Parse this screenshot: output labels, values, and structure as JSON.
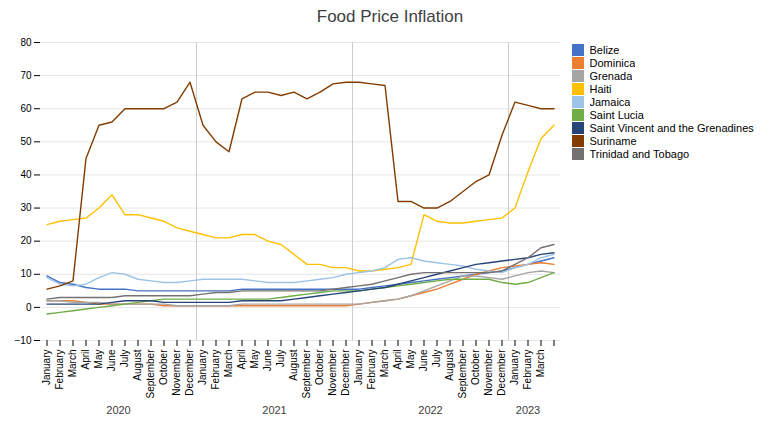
{
  "chart_data": {
    "type": "line",
    "title": "Food Price Inflation",
    "categories": [
      "January",
      "February",
      "March",
      "April",
      "May",
      "June",
      "July",
      "August",
      "September",
      "October",
      "November",
      "December",
      "January",
      "February",
      "March",
      "April",
      "May",
      "June",
      "July",
      "August",
      "September",
      "October",
      "November",
      "December",
      "January",
      "February",
      "March",
      "April",
      "May",
      "June",
      "July",
      "August",
      "September",
      "October",
      "November",
      "December",
      "January",
      "February",
      "March",
      null
    ],
    "series": [
      {
        "name": "Belize",
        "color": "#4472C4",
        "values": [
          9.5,
          7.5,
          7.0,
          6.0,
          5.5,
          5.5,
          5.5,
          5.0,
          5.0,
          5.0,
          5.0,
          5.0,
          5.0,
          5.0,
          5.0,
          5.5,
          5.5,
          5.5,
          5.5,
          5.5,
          5.5,
          5.5,
          5.5,
          5.5,
          5.5,
          6.0,
          6.5,
          7.0,
          7.5,
          8.0,
          8.5,
          9.0,
          9.5,
          10.0,
          10.5,
          11.0,
          12.0,
          13.0,
          14.0,
          15.0
        ]
      },
      {
        "name": "Dominica",
        "color": "#ED7D31",
        "values": [
          2.0,
          2.0,
          2.0,
          1.5,
          1.0,
          1.0,
          1.0,
          1.0,
          1.0,
          0.5,
          0.5,
          0.5,
          0.5,
          0.5,
          0.5,
          0.5,
          0.5,
          0.5,
          0.5,
          0.5,
          0.5,
          0.5,
          0.5,
          0.5,
          1.0,
          1.5,
          2.0,
          2.5,
          3.5,
          4.5,
          5.5,
          7.0,
          8.5,
          10.0,
          11.0,
          12.0,
          12.5,
          13.0,
          13.5,
          13.0
        ]
      },
      {
        "name": "Grenada",
        "color": "#A5A5A5",
        "values": [
          2.0,
          2.0,
          1.5,
          1.5,
          1.5,
          1.0,
          1.0,
          1.0,
          1.0,
          1.0,
          0.5,
          0.5,
          0.5,
          0.5,
          0.5,
          1.0,
          1.0,
          1.0,
          1.0,
          1.0,
          1.0,
          1.0,
          1.0,
          1.0,
          1.0,
          1.5,
          2.0,
          2.5,
          3.5,
          5.0,
          6.5,
          8.0,
          9.5,
          9.5,
          9.0,
          8.5,
          9.5,
          10.5,
          11.0,
          10.5
        ]
      },
      {
        "name": "Haiti",
        "color": "#FFC000",
        "values": [
          25.0,
          26.0,
          26.5,
          27.0,
          30.0,
          34.0,
          28.0,
          28.0,
          27.0,
          26.0,
          24.0,
          23.0,
          22.0,
          21.0,
          21.0,
          22.0,
          22.0,
          20.0,
          19.0,
          16.0,
          13.0,
          13.0,
          12.0,
          12.0,
          11.0,
          11.0,
          11.5,
          12.0,
          13.0,
          28.0,
          26.0,
          25.5,
          25.5,
          26.0,
          26.5,
          27.0,
          30.0,
          41.0,
          51.0,
          55.0
        ]
      },
      {
        "name": "Jamaica",
        "color": "#9DC3E6",
        "values": [
          9.0,
          7.0,
          6.5,
          7.0,
          9.0,
          10.5,
          10.0,
          8.5,
          8.0,
          7.5,
          7.5,
          8.0,
          8.5,
          8.5,
          8.5,
          8.5,
          8.0,
          7.5,
          7.5,
          7.5,
          8.0,
          8.5,
          9.0,
          10.0,
          10.5,
          11.0,
          12.0,
          14.5,
          15.0,
          14.0,
          13.5,
          13.0,
          12.5,
          11.5,
          11.0,
          10.5,
          12.0,
          13.0,
          15.0,
          16.0
        ]
      },
      {
        "name": "Saint Lucia",
        "color": "#70AD47",
        "values": [
          -2.0,
          -1.5,
          -1.0,
          -0.5,
          0.0,
          0.5,
          1.0,
          1.5,
          2.0,
          2.5,
          2.5,
          2.5,
          2.5,
          2.5,
          2.5,
          2.5,
          2.5,
          2.5,
          3.0,
          3.5,
          4.0,
          4.5,
          5.0,
          5.0,
          5.0,
          5.5,
          6.0,
          6.5,
          7.0,
          7.5,
          8.0,
          8.5,
          8.5,
          8.5,
          8.5,
          7.5,
          7.0,
          7.5,
          9.0,
          10.5
        ]
      },
      {
        "name": "Saint Vincent and the Grenadines",
        "color": "#264478",
        "values": [
          1.0,
          1.0,
          1.0,
          1.0,
          1.0,
          1.5,
          2.0,
          2.0,
          2.0,
          1.5,
          1.5,
          1.5,
          1.5,
          1.5,
          1.5,
          2.0,
          2.0,
          2.0,
          2.0,
          2.5,
          3.0,
          3.5,
          4.0,
          4.5,
          5.0,
          5.5,
          6.0,
          7.0,
          8.0,
          9.0,
          10.0,
          11.0,
          12.0,
          13.0,
          13.5,
          14.0,
          14.5,
          15.0,
          16.0,
          16.5
        ]
      },
      {
        "name": "Suriname",
        "color": "#833C00",
        "values": [
          5.5,
          6.5,
          8.0,
          45.0,
          55.0,
          56.0,
          60.0,
          60.0,
          60.0,
          60.0,
          62.0,
          68.0,
          55.0,
          50.0,
          47.0,
          63.0,
          65.0,
          65.0,
          64.0,
          65.0,
          63.0,
          65.0,
          67.5,
          68.0,
          68.0,
          67.5,
          67.0,
          32.0,
          32.0,
          30.0,
          30.0,
          32.0,
          35.0,
          38.0,
          40.0,
          52.0,
          62.0,
          61.0,
          60.0,
          60.0
        ]
      },
      {
        "name": "Trinidad and Tobago",
        "color": "#767171",
        "values": [
          2.5,
          3.0,
          3.0,
          3.0,
          3.0,
          3.0,
          3.5,
          3.5,
          3.5,
          3.5,
          3.5,
          3.5,
          4.0,
          4.5,
          4.5,
          5.0,
          5.0,
          5.0,
          5.0,
          5.0,
          5.0,
          5.0,
          5.5,
          6.0,
          6.5,
          7.0,
          8.0,
          9.0,
          10.0,
          10.5,
          10.5,
          10.5,
          10.5,
          10.5,
          10.5,
          11.0,
          13.0,
          15.0,
          18.0,
          19.0
        ]
      }
    ],
    "annotations": [
      {
        "text": "2020",
        "x": 5.5
      },
      {
        "text": "2021",
        "x": 17.5
      },
      {
        "text": "2022",
        "x": 29.5
      },
      {
        "text": "2023",
        "x": 37.0
      }
    ],
    "ylim": [
      -10,
      80
    ],
    "yticks": [
      -10,
      0,
      10,
      20,
      30,
      40,
      50,
      60,
      70,
      80
    ],
    "grid": true,
    "legend": "right"
  }
}
